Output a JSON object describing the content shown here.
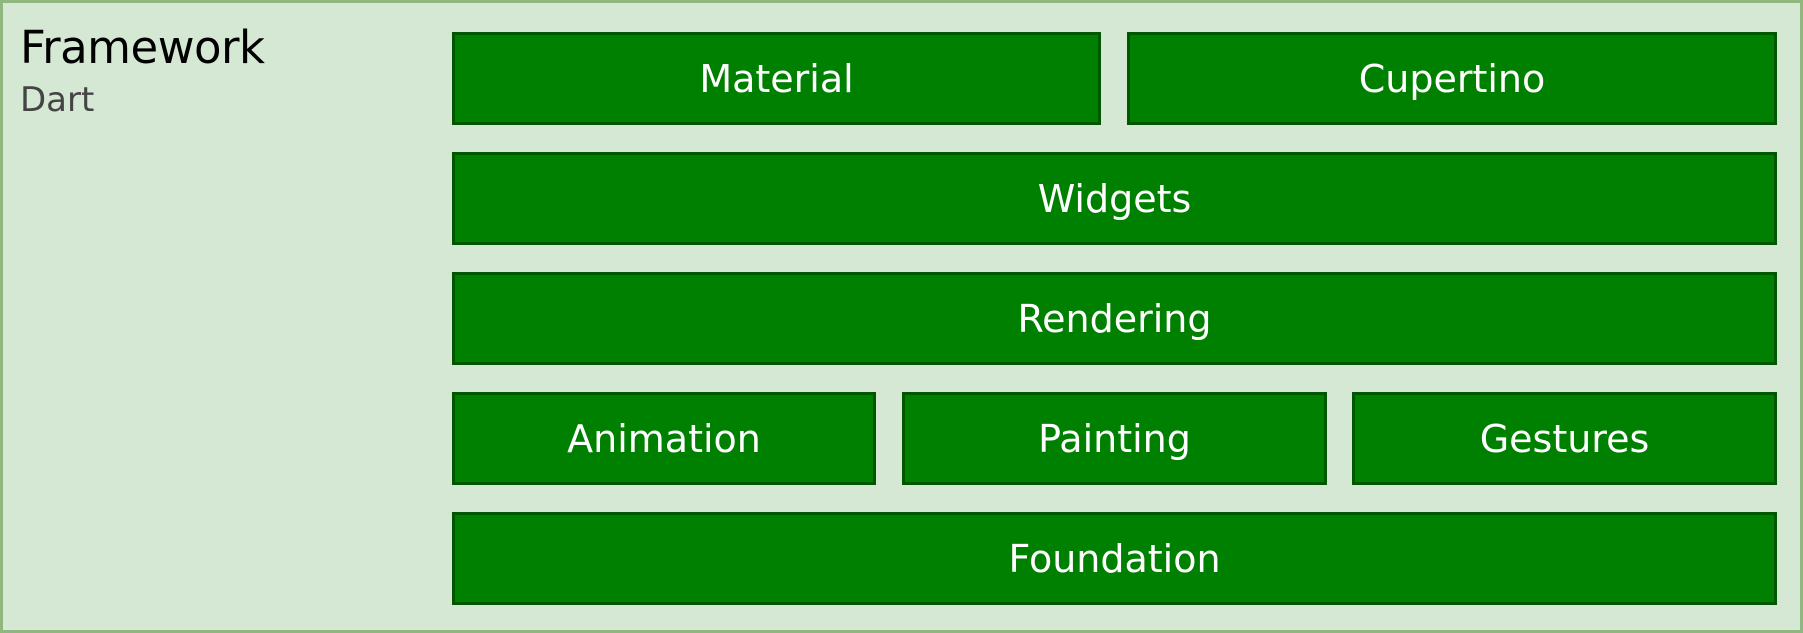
{
  "framework": {
    "title": "Framework",
    "subtitle": "Dart"
  },
  "layers": {
    "material": "Material",
    "cupertino": "Cupertino",
    "widgets": "Widgets",
    "rendering": "Rendering",
    "animation": "Animation",
    "painting": "Painting",
    "gestures": "Gestures",
    "foundation": "Foundation"
  },
  "colors": {
    "container_fill": "#d5e8d4",
    "container_border": "#8fb77f",
    "block_fill": "#008000",
    "block_border": "#005700",
    "block_text": "#ffffff"
  }
}
